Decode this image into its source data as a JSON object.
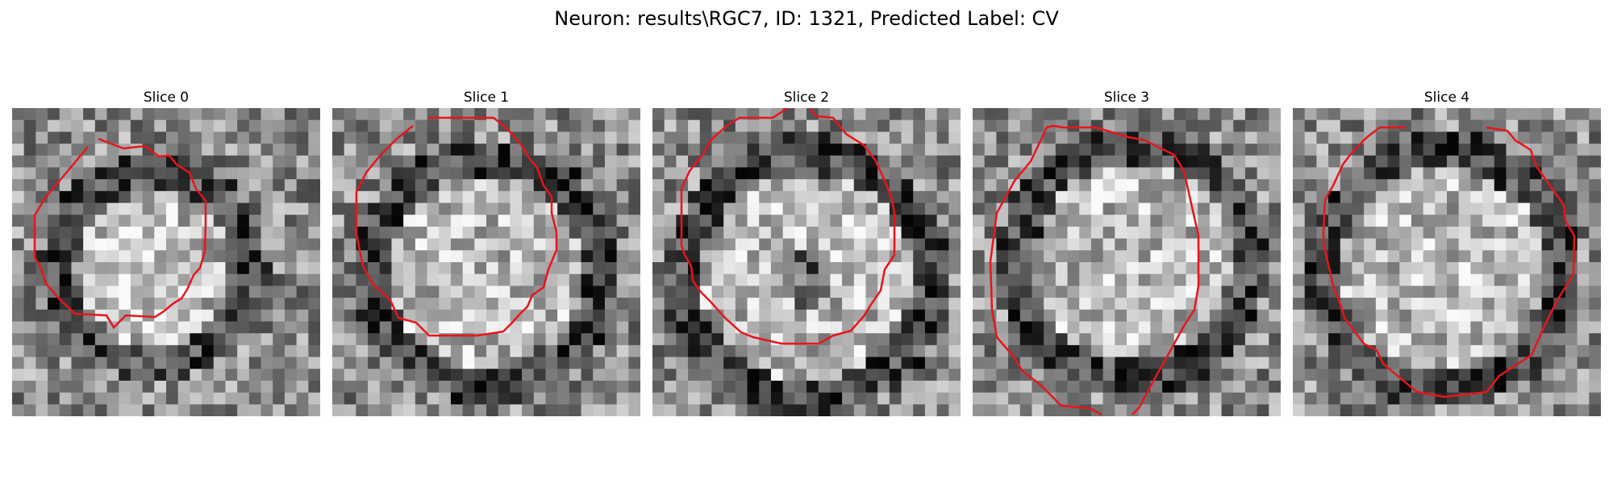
{
  "figure": {
    "title": "Neuron: results\\RGC7, ID: 1321, Predicted Label: CV"
  },
  "contour_color": "#e8151b",
  "panels": [
    {
      "title": "Slice 0"
    },
    {
      "title": "Slice 1"
    },
    {
      "title": "Slice 2"
    },
    {
      "title": "Slice 3"
    },
    {
      "title": "Slice 4"
    }
  ]
}
